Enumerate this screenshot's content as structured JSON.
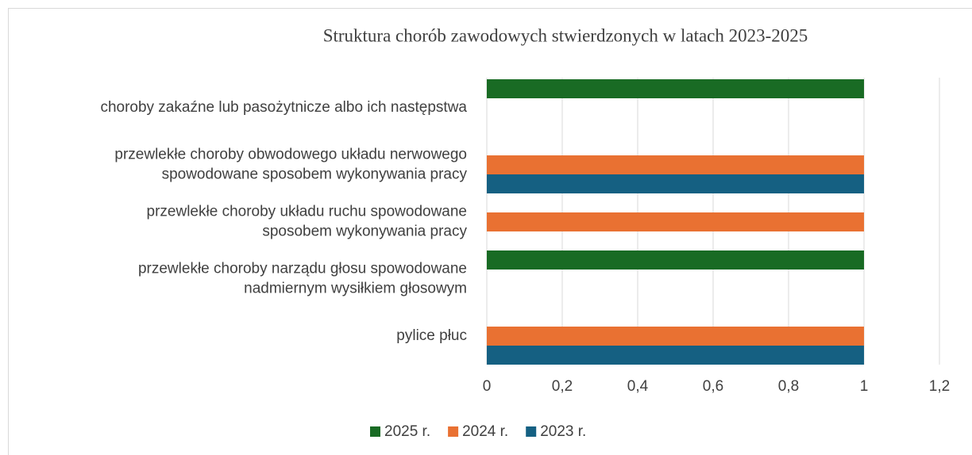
{
  "chart_data": {
    "type": "bar",
    "orientation": "horizontal",
    "title": "Struktura chorób zawodowych stwierdzonych w latach 2023-2025",
    "categories": [
      [
        "choroby zakaźne lub pasożytnicze albo ich następstwa"
      ],
      [
        "przewlekłe choroby obwodowego układu nerwowego",
        "spowodowane sposobem wykonywania pracy"
      ],
      [
        "przewlekłe choroby układu ruchu spowodowane",
        "sposobem wykonywania pracy"
      ],
      [
        "przewlekłe choroby narządu głosu spowodowane",
        "nadmiernym wysiłkiem głosowym"
      ],
      [
        "pylice płuc"
      ]
    ],
    "series": [
      {
        "name": "2025 r.",
        "color": "#196b24",
        "values": [
          1,
          0,
          0,
          1,
          0
        ]
      },
      {
        "name": "2024 r.",
        "color": "#e97132",
        "values": [
          0,
          1,
          1,
          0,
          1
        ]
      },
      {
        "name": "2023 r.",
        "color": "#156082",
        "values": [
          0,
          1,
          0,
          0,
          1
        ]
      }
    ],
    "xlim": [
      0,
      1.2
    ],
    "xticks": [
      0,
      {
        "value": 0.2,
        "label": "0,2"
      },
      {
        "value": 0.4,
        "label": "0,4"
      },
      {
        "value": 0.6,
        "label": "0,6"
      },
      {
        "value": 0.8,
        "label": "0,8"
      },
      1,
      {
        "value": 1.2,
        "label": "1,2"
      }
    ],
    "grid": true,
    "legend": "bottom"
  }
}
